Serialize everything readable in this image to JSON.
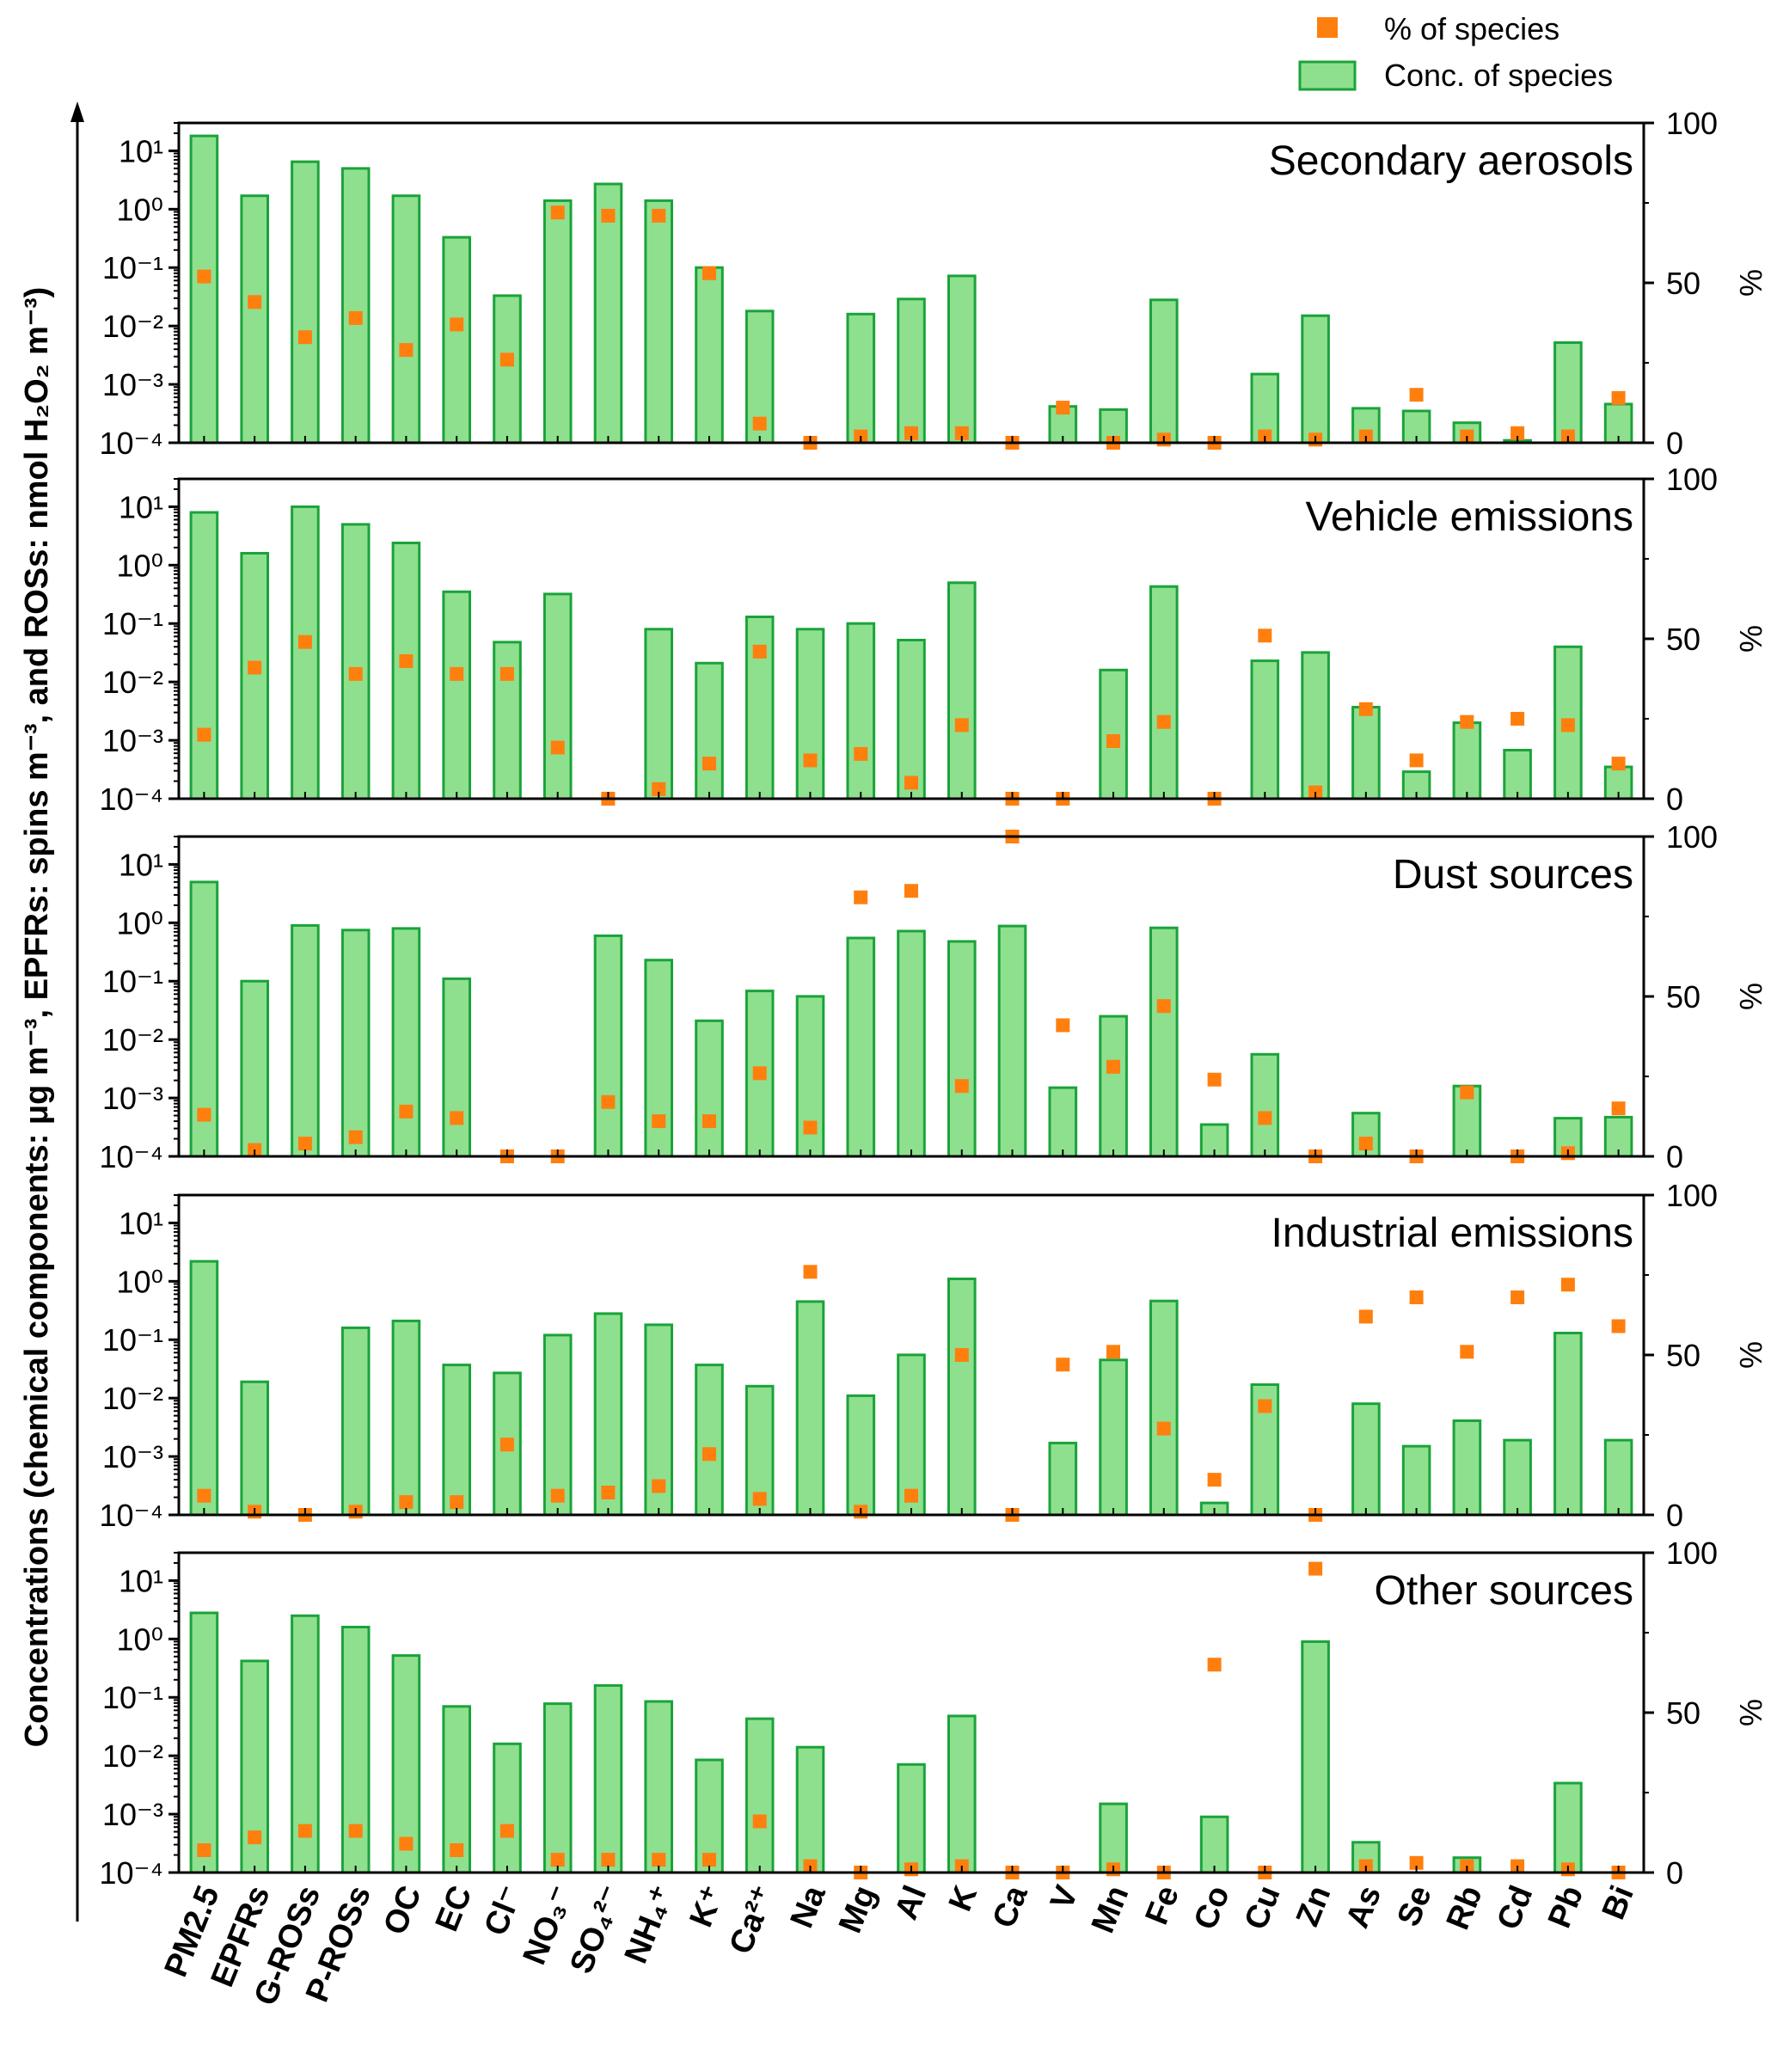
{
  "legend": {
    "pct_label": "% of species",
    "conc_label": "Conc. of species"
  },
  "y_axis_label": "Concentrations (chemical components: μg m⁻³, EPFRs: spins m⁻³, and ROSs: nmol H₂O₂ m⁻³)",
  "right_axis_label": "%",
  "colors": {
    "bar_fill": "#8ee08e",
    "bar_stroke": "#1aa33a",
    "marker": "#ff7f0e",
    "axis": "#000000"
  },
  "chart_data": {
    "type": "bar",
    "xscale": "categorical",
    "yscale_left": "log",
    "ylim_left": [
      0.0001,
      30
    ],
    "yticks_left": [
      "10¹",
      "10⁰",
      "10⁻¹",
      "10⁻²",
      "10⁻³",
      "10⁻⁴"
    ],
    "ylim_right": [
      0,
      100
    ],
    "yticks_right": [
      "100",
      "50",
      "0"
    ],
    "legend_position": "top-right",
    "categories": [
      "PM2.5",
      "EPFRs",
      "G-ROSs",
      "P-ROSs",
      "OC",
      "EC",
      "Cl⁻",
      "NO₃⁻",
      "SO₄²⁻",
      "NH₄⁺",
      "K⁺",
      "Ca²⁺",
      "Na",
      "Mg",
      "Al",
      "K",
      "Ca",
      "V",
      "Mn",
      "Fe",
      "Co",
      "Cu",
      "Zn",
      "As",
      "Se",
      "Rb",
      "Cd",
      "Pb",
      "Bi"
    ],
    "panels": [
      {
        "title": "Secondary aerosols",
        "concentration": [
          18,
          1.7,
          6.5,
          5,
          1.7,
          0.33,
          0.033,
          1.4,
          2.7,
          1.4,
          0.1,
          0.018,
          null,
          0.016,
          0.029,
          0.072,
          null,
          0.00042,
          0.00037,
          0.028,
          null,
          0.0015,
          0.015,
          0.00039,
          0.00035,
          0.00022,
          0.00011,
          0.0052,
          0.00046
        ],
        "percent": [
          52,
          44,
          33,
          39,
          29,
          37,
          26,
          72,
          71,
          71,
          53,
          6,
          0,
          2,
          3,
          3,
          0,
          11,
          0,
          1,
          0,
          2,
          1,
          2,
          15,
          2,
          3,
          2,
          14
        ]
      },
      {
        "title": "Vehicle emissions",
        "concentration": [
          8,
          1.6,
          10,
          5,
          2.4,
          0.35,
          0.048,
          0.32,
          null,
          0.08,
          0.021,
          0.13,
          0.08,
          0.1,
          0.052,
          0.5,
          null,
          null,
          0.016,
          0.43,
          null,
          0.023,
          0.032,
          0.0037,
          0.00029,
          0.002,
          0.00068,
          0.04,
          0.00035
        ],
        "percent": [
          20,
          41,
          49,
          39,
          43,
          39,
          39,
          16,
          0,
          3,
          11,
          46,
          12,
          14,
          5,
          23,
          0,
          0,
          18,
          24,
          0,
          51,
          2,
          28,
          12,
          24,
          25,
          23,
          11
        ]
      },
      {
        "title": "Dust sources",
        "concentration": [
          5,
          0.1,
          0.9,
          0.75,
          0.8,
          0.11,
          null,
          null,
          0.6,
          0.23,
          0.021,
          0.068,
          0.055,
          0.55,
          0.72,
          0.48,
          0.88,
          0.0015,
          0.025,
          0.82,
          0.00035,
          0.0056,
          null,
          0.00055,
          null,
          0.0016,
          null,
          0.00045,
          0.00047
        ],
        "percent": [
          13,
          2,
          4,
          6,
          14,
          12,
          0,
          0,
          17,
          11,
          11,
          26,
          9,
          81,
          83,
          22,
          100,
          41,
          28,
          47,
          24,
          12,
          0,
          4,
          0,
          20,
          0,
          1,
          15
        ]
      },
      {
        "title": "Industrial emissions",
        "concentration": [
          2.2,
          0.019,
          null,
          0.16,
          0.21,
          0.037,
          0.027,
          0.12,
          0.28,
          0.18,
          0.037,
          0.016,
          0.45,
          0.011,
          0.055,
          1.1,
          null,
          0.0017,
          0.045,
          0.46,
          0.00016,
          0.017,
          null,
          0.008,
          0.0015,
          0.0041,
          0.0019,
          0.13,
          0.0019
        ],
        "percent": [
          6,
          1,
          0,
          1,
          4,
          4,
          22,
          6,
          7,
          9,
          19,
          5,
          76,
          1,
          6,
          50,
          0,
          47,
          51,
          27,
          11,
          34,
          0,
          62,
          68,
          51,
          68,
          72,
          59
        ]
      },
      {
        "title": "Other sources",
        "concentration": [
          2.8,
          0.42,
          2.5,
          1.6,
          0.52,
          0.07,
          0.016,
          0.078,
          0.16,
          0.085,
          0.0085,
          0.043,
          0.014,
          null,
          0.0071,
          0.048,
          null,
          null,
          0.0015,
          null,
          0.0009,
          null,
          0.9,
          0.00033,
          null,
          0.00018,
          null,
          0.0034,
          null
        ],
        "percent": [
          7,
          11,
          13,
          13,
          9,
          7,
          13,
          4,
          4,
          4,
          4,
          16,
          2,
          0,
          1,
          2,
          0,
          0,
          1,
          0,
          65,
          0,
          95,
          2,
          3,
          2,
          2,
          1,
          0
        ]
      }
    ]
  }
}
